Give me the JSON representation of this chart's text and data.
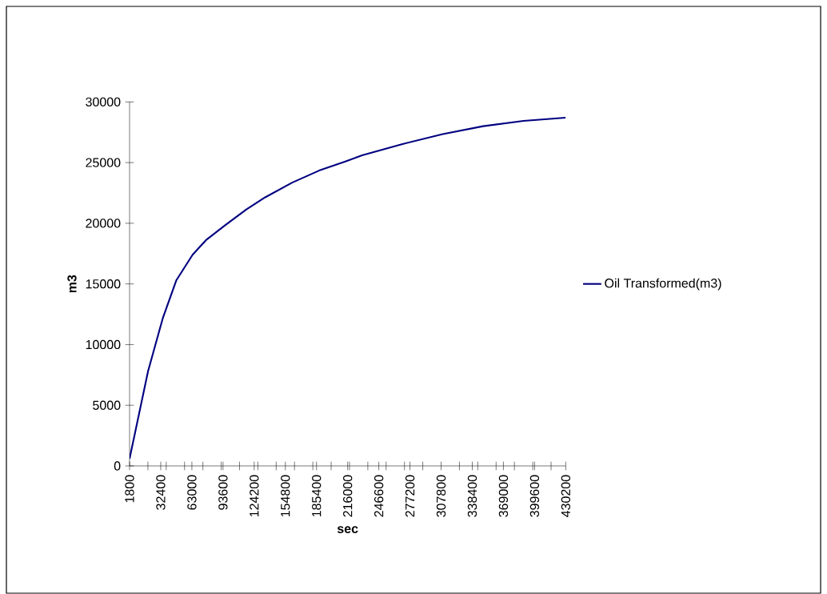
{
  "chart_data": {
    "type": "line",
    "xlabel": "sec",
    "ylabel": "m3",
    "x": [
      1800,
      20000,
      34600,
      47800,
      63700,
      76900,
      95400,
      116500,
      135000,
      161500,
      187900,
      214300,
      230200,
      269800,
      309500,
      349100,
      388800,
      430200
    ],
    "series": [
      {
        "name": "Oil Transformed(m3)",
        "color": "#000080",
        "values": [
          600,
          7820,
          12220,
          15310,
          17400,
          18610,
          19820,
          21140,
          22140,
          23350,
          24340,
          25110,
          25600,
          26530,
          27350,
          28000,
          28440,
          28700
        ]
      }
    ],
    "xlim": [
      1800,
      430200
    ],
    "ylim": [
      0,
      30000
    ],
    "xticks": [
      1800,
      {
        "value": 19800,
        "label": null
      },
      32400,
      {
        "value": 37800,
        "label": null
      },
      {
        "value": 55800,
        "label": null
      },
      63000,
      {
        "value": 73800,
        "label": null
      },
      {
        "value": 91800,
        "label": null
      },
      93600,
      {
        "value": 109800,
        "label": null
      },
      124200,
      {
        "value": 127800,
        "label": null
      },
      {
        "value": 145800,
        "label": null
      },
      154800,
      {
        "value": 163800,
        "label": null
      },
      {
        "value": 181800,
        "label": null
      },
      185400,
      {
        "value": 199800,
        "label": null
      },
      216000,
      {
        "value": 217800,
        "label": null
      },
      {
        "value": 235800,
        "label": null
      },
      246600,
      {
        "value": 253800,
        "label": null
      },
      {
        "value": 271800,
        "label": null
      },
      277200,
      {
        "value": 289800,
        "label": null
      },
      307800,
      {
        "value": 325800,
        "label": null
      },
      338400,
      {
        "value": 343800,
        "label": null
      },
      {
        "value": 361800,
        "label": null
      },
      369000,
      {
        "value": 379800,
        "label": null
      },
      {
        "value": 397800,
        "label": null
      },
      399600,
      {
        "value": 415800,
        "label": null
      },
      430200
    ],
    "yticks": [
      0,
      5000,
      10000,
      15000,
      20000,
      25000,
      30000
    ],
    "grid": false,
    "legend": "right",
    "marker": "none",
    "line_style": "solid"
  }
}
